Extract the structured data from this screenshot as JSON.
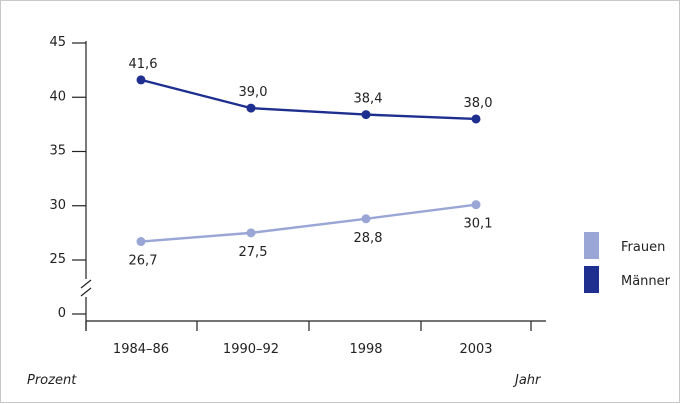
{
  "chart_data": {
    "type": "line",
    "title": "",
    "xlabel": "Jahr",
    "ylabel": "Prozent",
    "categories": [
      "1984–86",
      "1990–92",
      "1998",
      "2003"
    ],
    "y_ticks": [
      "45",
      "40",
      "35",
      "30",
      "25",
      "0"
    ],
    "y_tick_values": [
      45,
      40,
      35,
      30,
      25,
      0
    ],
    "ylim": [
      0,
      45
    ],
    "axis_break": "between 0 and 25",
    "grid": false,
    "legend_position": "right",
    "series": [
      {
        "name": "Frauen",
        "color": "#9aa6d6",
        "values": [
          26.7,
          27.5,
          28.8,
          30.1
        ],
        "labels": [
          "26,7",
          "27,5",
          "28,8",
          "30,1"
        ]
      },
      {
        "name": "Männer",
        "color": "#1e2f8f",
        "values": [
          41.6,
          39.0,
          38.4,
          38.0
        ],
        "labels": [
          "41,6",
          "39,0",
          "38,4",
          "38,0"
        ]
      }
    ]
  }
}
